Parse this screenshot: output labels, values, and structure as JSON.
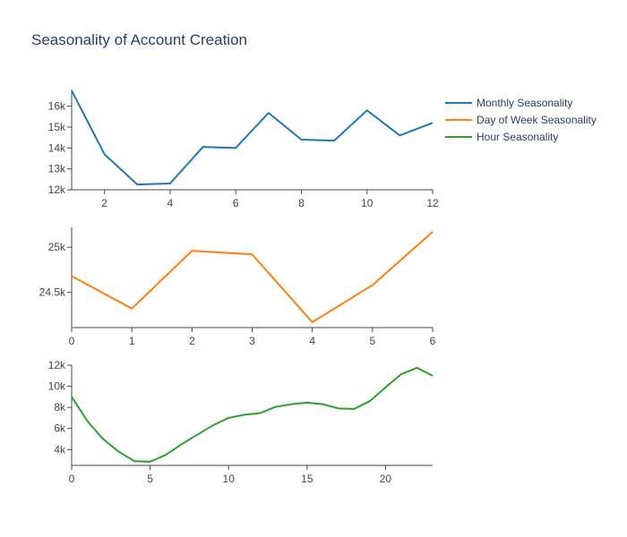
{
  "chart_data": {
    "type": "line",
    "title": "Seasonality of Account Creation",
    "legend_position": "top-right",
    "grid": false,
    "legend": [
      {
        "name": "Monthly Seasonality",
        "color": "#1f77b4"
      },
      {
        "name": "Day of Week Seasonality",
        "color": "#ff7f0e"
      },
      {
        "name": "Hour Seasonality",
        "color": "#2ca02c"
      }
    ],
    "subplots": [
      {
        "series_name": "Monthly Seasonality",
        "color": "#1f77b4",
        "x": [
          1,
          2,
          3,
          4,
          5,
          6,
          7,
          8,
          9,
          10,
          11,
          12
        ],
        "y": [
          16750,
          13700,
          12250,
          12300,
          14050,
          14000,
          15680,
          14400,
          14350,
          15800,
          14600,
          15200
        ],
        "xlim": [
          1,
          12
        ],
        "ylim": [
          12000,
          16800
        ],
        "xticks": [
          2,
          4,
          6,
          8,
          10,
          12
        ],
        "xtick_labels": [
          "2",
          "4",
          "6",
          "8",
          "10",
          "12"
        ],
        "yticks": [
          12000,
          13000,
          14000,
          15000,
          16000
        ],
        "ytick_labels": [
          "12k",
          "13k",
          "14k",
          "15k",
          "16k"
        ]
      },
      {
        "series_name": "Day of Week Seasonality",
        "color": "#ff7f0e",
        "x": [
          0,
          1,
          2,
          3,
          4,
          5,
          6
        ],
        "y": [
          24680,
          24320,
          24960,
          24920,
          24170,
          24580,
          25170
        ],
        "xlim": [
          0,
          6
        ],
        "ylim": [
          24110,
          25220
        ],
        "xticks": [
          0,
          1,
          2,
          3,
          4,
          5,
          6
        ],
        "xtick_labels": [
          "0",
          "1",
          "2",
          "3",
          "4",
          "5",
          "6"
        ],
        "yticks": [
          24500,
          25000
        ],
        "ytick_labels": [
          "24.5k",
          "25k"
        ]
      },
      {
        "series_name": "Hour Seasonality",
        "color": "#2ca02c",
        "x": [
          0,
          1,
          2,
          3,
          4,
          5,
          6,
          7,
          8,
          9,
          10,
          11,
          12,
          13,
          14,
          15,
          16,
          17,
          18,
          19,
          20,
          21,
          22,
          23
        ],
        "y": [
          9000,
          6700,
          5000,
          3800,
          2900,
          2850,
          3500,
          4500,
          5400,
          6300,
          7000,
          7300,
          7450,
          8050,
          8300,
          8450,
          8300,
          7900,
          7850,
          8600,
          9900,
          11150,
          11750,
          11000
        ],
        "xlim": [
          0,
          23
        ],
        "ylim": [
          2500,
          12000
        ],
        "xticks": [
          0,
          5,
          10,
          15,
          20
        ],
        "xtick_labels": [
          "0",
          "5",
          "10",
          "15",
          "20"
        ],
        "yticks": [
          4000,
          6000,
          8000,
          10000,
          12000
        ],
        "ytick_labels": [
          "4k",
          "6k",
          "8k",
          "10k",
          "12k"
        ]
      }
    ]
  }
}
